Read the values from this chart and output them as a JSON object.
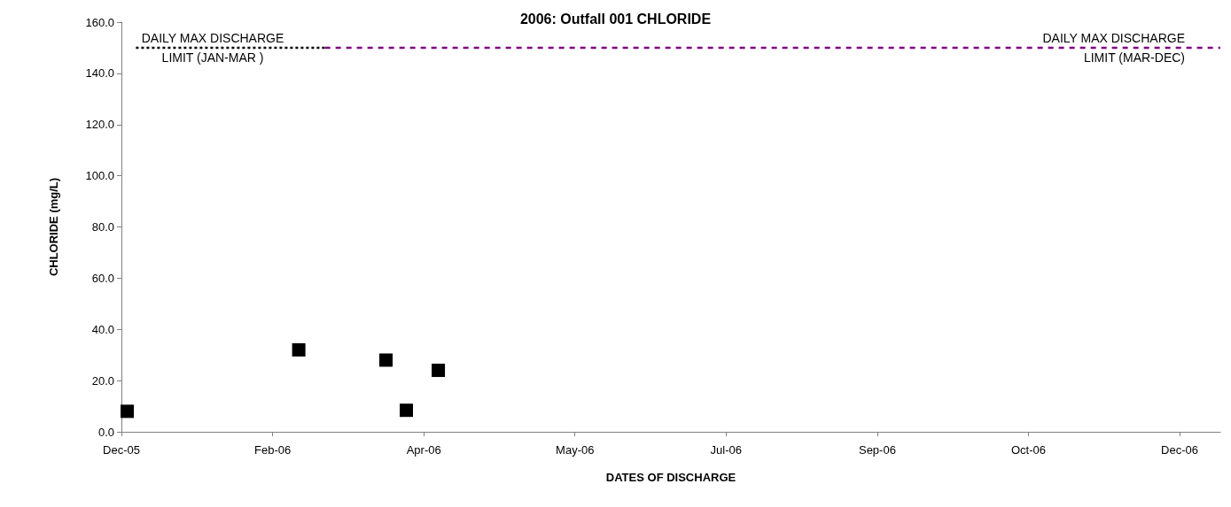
{
  "chart_data": {
    "type": "scatter",
    "title": "2006: Outfall 001 CHLORIDE",
    "xlabel": "DATES OF DISCHARGE",
    "ylabel": "CHLORIDE (mg/L)",
    "x": [
      "2005-12-22",
      "2006-02-19",
      "2006-03-21",
      "2006-03-28",
      "2006-04-08"
    ],
    "series": [
      {
        "color": "#000000",
        "marker": "square",
        "values": [
          8,
          32,
          28,
          8.4,
          24
        ]
      },
      {
        "type": "line",
        "name": "DAILY MAX DISCHARGE\nLIMIT (JAN-MAR )",
        "color": "#000000",
        "line_style": "dotted",
        "marker": "none",
        "x": [
          "2005-12-25",
          "2006-02-28"
        ],
        "values": [
          150,
          150
        ]
      },
      {
        "type": "line",
        "name": "DAILY MAX DISCHARGE\nLIMIT (MAR-DEC)",
        "color": "#800080",
        "line_style": "dashed",
        "marker": "none",
        "x": [
          "2006-02-28",
          "2007-01-02"
        ],
        "values": [
          150,
          150
        ]
      }
    ],
    "xlim": [
      "2005-12-20",
      "2007-01-02"
    ],
    "xticks": [
      {
        "value": "2005-12-20",
        "label": "Dec-05"
      },
      {
        "value": "2006-02-10",
        "label": "Feb-06"
      },
      {
        "value": "2006-04-03",
        "label": "Apr-06"
      },
      {
        "value": "2006-05-25",
        "label": "May-06"
      },
      {
        "value": "2006-07-16",
        "label": "Jul-06"
      },
      {
        "value": "2006-09-06",
        "label": "Sep-06"
      },
      {
        "value": "2006-10-28",
        "label": "Oct-06"
      },
      {
        "value": "2006-12-19",
        "label": "Dec-06"
      }
    ],
    "ylim": [
      0,
      160
    ],
    "yticks": [
      {
        "value": 0,
        "label": "0.0"
      },
      {
        "value": 20,
        "label": "20.0"
      },
      {
        "value": 40,
        "label": "40.0"
      },
      {
        "value": 60,
        "label": "60.0"
      },
      {
        "value": 80,
        "label": "80.0"
      },
      {
        "value": 100,
        "label": "100.0"
      },
      {
        "value": 120,
        "label": "120.0"
      },
      {
        "value": 140,
        "label": "140.0"
      },
      {
        "value": 160,
        "label": "160.0"
      }
    ],
    "grid": false
  }
}
